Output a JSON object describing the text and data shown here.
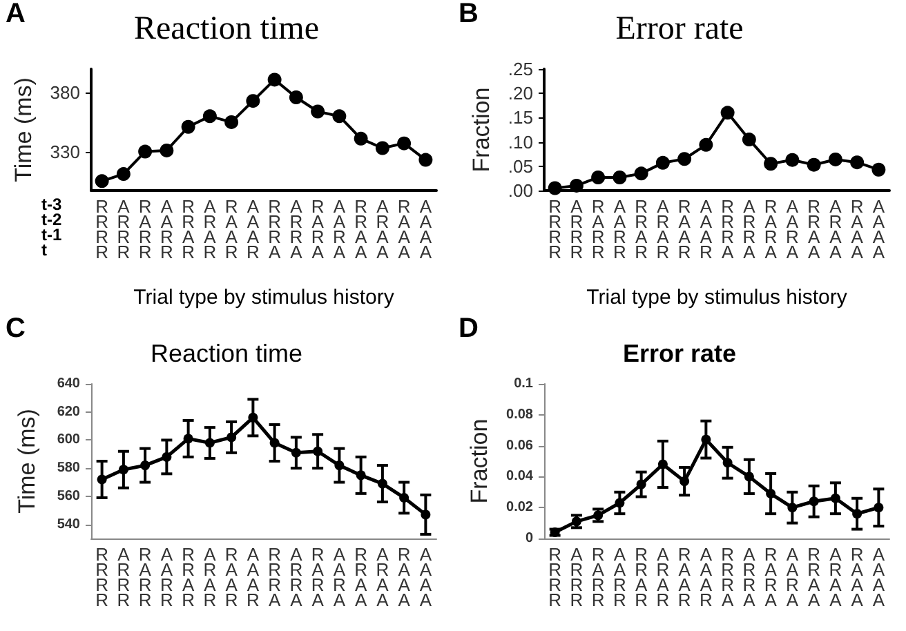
{
  "chart_data": [
    {
      "type": "line",
      "title": "Reaction time",
      "xlabel": "Trial type by stimulus history",
      "ylabel": "Time (ms)",
      "categories": [
        "R\nR\nR\nR",
        "A\nR\nR\nR",
        "R\nA\nR\nR",
        "A\nA\nR\nR",
        "R\nR\nA\nR",
        "A\nR\nA\nR",
        "R\nA\nA\nR",
        "A\nA\nA\nR",
        "R\nR\nR\nA",
        "A\nR\nR\nA",
        "R\nA\nR\nA",
        "A\nA\nR\nA",
        "R\nR\nA\nA",
        "A\nR\nA\nA",
        "R\nA\nA\nA",
        "A\nA\nA\nA"
      ],
      "values": [
        305,
        311,
        330,
        331,
        351,
        360,
        355,
        373,
        391,
        376,
        364,
        360,
        341,
        333,
        337,
        323
      ],
      "color": "#000000",
      "ylim": [
        297,
        400
      ],
      "yticks": [
        330,
        380
      ],
      "grid": false,
      "marker": "circle",
      "annotations": [
        "A",
        "t-3",
        "t-2",
        "t-1",
        "t"
      ]
    },
    {
      "type": "line",
      "title": "Error rate",
      "xlabel": "Trial type by stimulus history",
      "ylabel": "Fraction",
      "categories": [
        "R\nR\nR\nR",
        "A\nR\nR\nR",
        "R\nA\nR\nR",
        "A\nA\nR\nR",
        "R\nR\nA\nR",
        "A\nR\nA\nR",
        "R\nA\nA\nR",
        "A\nA\nA\nR",
        "R\nR\nR\nA",
        "A\nR\nR\nA",
        "R\nA\nR\nA",
        "A\nA\nR\nA",
        "R\nR\nA\nA",
        "A\nR\nA\nA",
        "R\nA\nA\nA",
        "A\nA\nA\nA"
      ],
      "values": [
        0.005,
        0.01,
        0.027,
        0.027,
        0.035,
        0.057,
        0.065,
        0.094,
        0.16,
        0.105,
        0.055,
        0.063,
        0.053,
        0.064,
        0.058,
        0.043
      ],
      "color": "#000000",
      "ylim": [
        0,
        0.25
      ],
      "yticks": [
        {
          "value": 0,
          "label": ".00"
        },
        {
          "value": 0.05,
          "label": ".05"
        },
        {
          "value": 0.1,
          "label": ".10"
        },
        {
          "value": 0.15,
          "label": ".15"
        },
        {
          "value": 0.2,
          "label": ".20"
        },
        {
          "value": 0.25,
          "label": ".25"
        }
      ],
      "grid": false,
      "marker": "circle",
      "annotations": [
        "B"
      ]
    },
    {
      "type": "line",
      "title": "Reaction time",
      "ylabel": "Time (ms)",
      "categories": [
        "R\nR\nR\nR",
        "A\nR\nR\nR",
        "R\nA\nR\nR",
        "A\nA\nR\nR",
        "R\nR\nA\nR",
        "A\nR\nA\nR",
        "R\nA\nA\nR",
        "A\nA\nA\nR",
        "R\nR\nR\nA",
        "A\nR\nR\nA",
        "R\nA\nR\nA",
        "A\nA\nR\nA",
        "R\nR\nA\nA",
        "A\nR\nA\nA",
        "R\nA\nA\nA",
        "A\nA\nA\nA"
      ],
      "values": [
        572,
        579,
        582,
        588,
        601,
        598,
        602,
        616,
        598,
        591,
        592,
        582,
        575,
        569,
        559,
        547
      ],
      "errors": [
        13,
        13,
        12,
        12,
        13,
        11,
        11,
        13,
        13,
        11,
        12,
        12,
        13,
        13,
        11,
        14
      ],
      "color": "#000000",
      "ylim": [
        530,
        640
      ],
      "yticks": [
        540,
        560,
        580,
        600,
        620,
        640
      ],
      "grid": false,
      "marker": "circle",
      "annotations": [
        "C"
      ]
    },
    {
      "type": "line",
      "title": "Error rate",
      "ylabel": "Fraction",
      "categories": [
        "R\nR\nR\nR",
        "A\nR\nR\nR",
        "R\nA\nR\nR",
        "A\nA\nR\nR",
        "R\nR\nA\nR",
        "A\nR\nA\nR",
        "R\nA\nA\nR",
        "A\nA\nA\nR",
        "R\nR\nR\nA",
        "A\nR\nR\nA",
        "R\nA\nR\nA",
        "A\nA\nR\nA",
        "R\nR\nA\nA",
        "A\nR\nA\nA",
        "R\nA\nA\nA",
        "A\nA\nA\nA"
      ],
      "values": [
        0.004,
        0.011,
        0.015,
        0.023,
        0.035,
        0.048,
        0.037,
        0.064,
        0.049,
        0.04,
        0.029,
        0.02,
        0.024,
        0.026,
        0.016,
        0.02
      ],
      "errors": [
        0.002,
        0.004,
        0.004,
        0.007,
        0.008,
        0.015,
        0.009,
        0.012,
        0.01,
        0.011,
        0.013,
        0.01,
        0.01,
        0.01,
        0.01,
        0.012
      ],
      "color": "#000000",
      "ylim": [
        0,
        0.1
      ],
      "yticks": [
        0,
        0.02,
        0.04,
        0.06,
        0.08,
        {
          "value": 0.1,
          "label": "0.1"
        }
      ],
      "grid": false,
      "marker": "circle",
      "annotations": [
        "D"
      ]
    }
  ]
}
